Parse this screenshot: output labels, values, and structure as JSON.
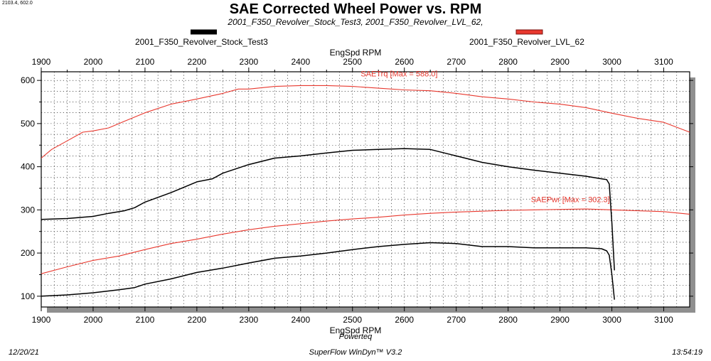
{
  "coord_readout": "2103.4, 602.0",
  "footer": {
    "date": "12/20/21",
    "brand": "Powerteq",
    "software": "SuperFlow WinDyn™ V3.2",
    "time": "13:54:19"
  },
  "chart_data": {
    "type": "line",
    "title": "SAE Corrected Wheel Power vs. RPM",
    "subtitle": "2001_F350_Revolver_Stock_Test3, 2001_F350_Revolver_LVL_62,",
    "xlabel": "EngSpd RPM",
    "ylabel": "",
    "xlim": [
      1900,
      3150
    ],
    "ylim": [
      75,
      620
    ],
    "x_ticks": [
      1900,
      2000,
      2100,
      2200,
      2300,
      2400,
      2500,
      2600,
      2700,
      2800,
      2900,
      3000,
      3100
    ],
    "y_ticks": [
      100,
      200,
      300,
      400,
      500,
      600
    ],
    "grid": true,
    "legend": [
      {
        "name": "2001_F350_Revolver_Stock_Test3",
        "color": "#000000"
      },
      {
        "name": "2001_F350_Revolver_LVL_62",
        "color": "#e8382e"
      }
    ],
    "annotations": [
      {
        "text": "SAETrq [Max = 588.0]",
        "x": 2590,
        "y": 609,
        "color": "#e8382e"
      },
      {
        "text": "SAEPwr [Max = 302.3]",
        "x": 2920,
        "y": 318,
        "color": "#e8382e"
      }
    ],
    "series": [
      {
        "name": "2001_F350_Revolver_LVL_62 SAETrq",
        "color": "#e8382e",
        "x": [
          1900,
          1920,
          1950,
          1980,
          2000,
          2030,
          2060,
          2080,
          2100,
          2150,
          2200,
          2250,
          2280,
          2300,
          2350,
          2400,
          2450,
          2500,
          2550,
          2600,
          2650,
          2700,
          2750,
          2800,
          2850,
          2900,
          2950,
          3000,
          3050,
          3100,
          3150
        ],
        "y": [
          420,
          440,
          460,
          480,
          483,
          490,
          505,
          515,
          525,
          545,
          557,
          570,
          580,
          580,
          586,
          588,
          588,
          586,
          582,
          578,
          576,
          570,
          562,
          557,
          550,
          545,
          537,
          524,
          512,
          503,
          480
        ]
      },
      {
        "name": "2001_F350_Revolver_LVL_62 SAEPwr",
        "color": "#e8382e",
        "x": [
          1900,
          1950,
          2000,
          2050,
          2100,
          2150,
          2200,
          2250,
          2300,
          2350,
          2400,
          2450,
          2500,
          2550,
          2600,
          2650,
          2700,
          2750,
          2800,
          2850,
          2900,
          2950,
          3000,
          3050,
          3100,
          3150
        ],
        "y": [
          152,
          168,
          183,
          193,
          208,
          222,
          232,
          244,
          254,
          262,
          268,
          274,
          279,
          283,
          288,
          292,
          295,
          297,
          299,
          300,
          301,
          302,
          300,
          298,
          296,
          290
        ]
      },
      {
        "name": "2001_F350_Revolver_Stock_Test3 SAETrq",
        "color": "#000000",
        "x": [
          1900,
          1950,
          2000,
          2030,
          2060,
          2080,
          2100,
          2150,
          2200,
          2230,
          2250,
          2300,
          2350,
          2400,
          2450,
          2500,
          2550,
          2600,
          2650,
          2700,
          2750,
          2800,
          2850,
          2900,
          2950,
          2980,
          2990,
          2995,
          3000,
          3005
        ],
        "y": [
          278,
          280,
          285,
          292,
          298,
          305,
          318,
          340,
          365,
          372,
          385,
          405,
          420,
          425,
          432,
          438,
          440,
          442,
          440,
          425,
          410,
          400,
          392,
          385,
          378,
          372,
          370,
          360,
          270,
          160
        ]
      },
      {
        "name": "2001_F350_Revolver_Stock_Test3 SAEPwr",
        "color": "#000000",
        "x": [
          1900,
          1950,
          2000,
          2050,
          2080,
          2100,
          2150,
          2200,
          2250,
          2300,
          2350,
          2400,
          2450,
          2500,
          2550,
          2600,
          2650,
          2700,
          2750,
          2800,
          2850,
          2900,
          2950,
          2980,
          2990,
          2995,
          3000,
          3005
        ],
        "y": [
          100,
          103,
          108,
          115,
          120,
          128,
          140,
          155,
          165,
          177,
          188,
          193,
          200,
          208,
          215,
          220,
          224,
          222,
          215,
          215,
          212,
          212,
          212,
          210,
          205,
          195,
          150,
          92
        ]
      }
    ]
  }
}
